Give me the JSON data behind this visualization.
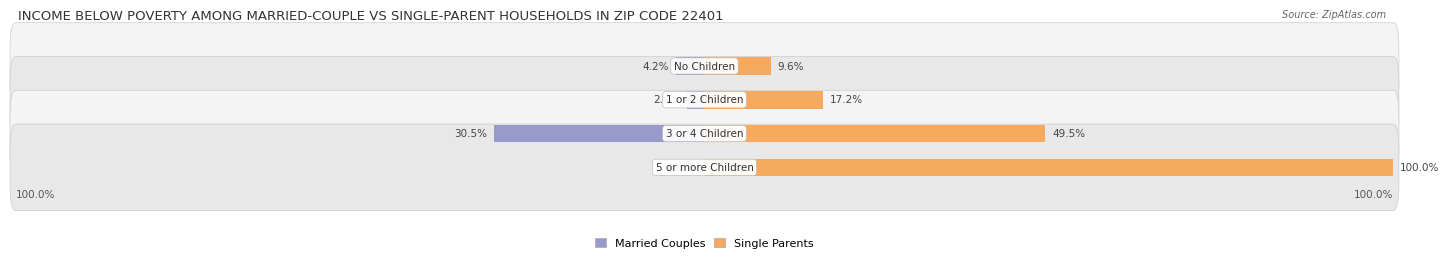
{
  "title": "INCOME BELOW POVERTY AMONG MARRIED-COUPLE VS SINGLE-PARENT HOUSEHOLDS IN ZIP CODE 22401",
  "source": "Source: ZipAtlas.com",
  "categories": [
    "No Children",
    "1 or 2 Children",
    "3 or 4 Children",
    "5 or more Children"
  ],
  "married_values": [
    4.2,
    2.6,
    30.5,
    0.0
  ],
  "single_values": [
    9.6,
    17.2,
    49.5,
    100.0
  ],
  "married_color": "#9999cc",
  "single_color": "#f5aa60",
  "row_bg_light": "#f4f4f4",
  "row_bg_dark": "#e8e8e8",
  "title_fontsize": 9.5,
  "label_fontsize": 7.5,
  "cat_fontsize": 7.5,
  "legend_fontsize": 8,
  "source_fontsize": 7,
  "bar_height": 0.52,
  "xlim": 100,
  "x_left_label": "100.0%",
  "x_right_label": "100.0%"
}
